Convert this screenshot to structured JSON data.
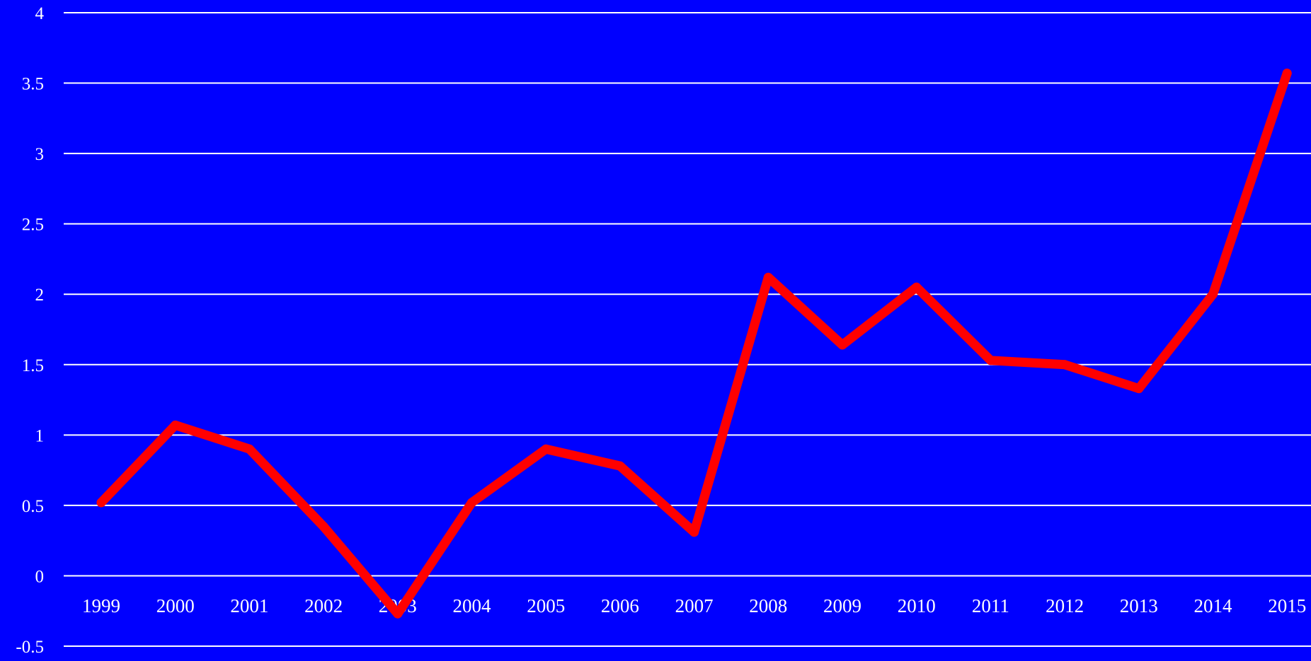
{
  "chart_data": {
    "type": "line",
    "title": "",
    "xlabel": "",
    "ylabel": "",
    "categories": [
      "1999",
      "2000",
      "2001",
      "2002",
      "2003",
      "2004",
      "2005",
      "2006",
      "2007",
      "2008",
      "2009",
      "2010",
      "2011",
      "2012",
      "2013",
      "2014",
      "2015"
    ],
    "series": [
      {
        "values": [
          0.52,
          1.07,
          0.9,
          0.35,
          -0.27,
          0.52,
          0.9,
          0.78,
          0.31,
          2.12,
          1.64,
          2.05,
          1.53,
          1.5,
          1.33,
          2.0,
          3.57
        ]
      }
    ],
    "ylim": [
      -0.5,
      4
    ],
    "yticks": [
      -0.5,
      0,
      0.5,
      1,
      1.5,
      2,
      2.5,
      3,
      3.5,
      4
    ],
    "ytick_labels": [
      "-0.5",
      "0",
      "0.5",
      "1",
      "1.5",
      "2",
      "2.5",
      "3",
      "3.5",
      "4"
    ],
    "grid": true,
    "legend": "none",
    "colors": {
      "background": "#0000FF",
      "gridline": "#FFFFFF",
      "line": "#FF0000",
      "text": "#FFFFFF"
    }
  }
}
